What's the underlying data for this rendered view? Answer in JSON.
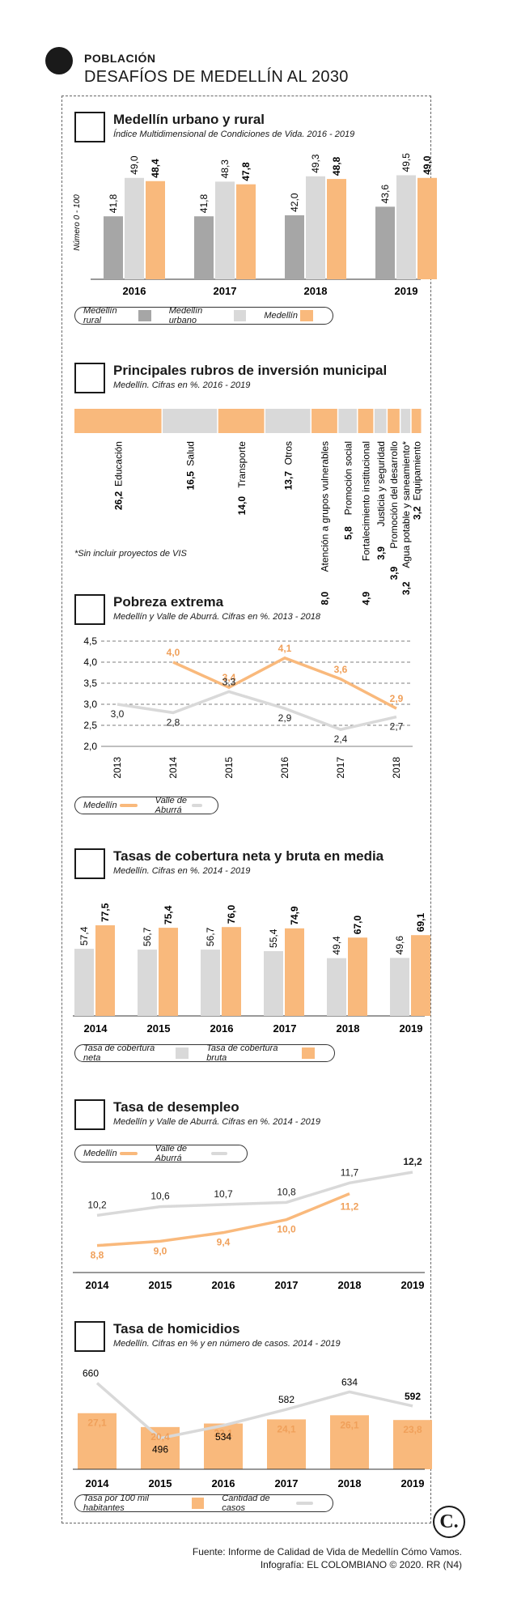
{
  "header": {
    "section": "POBLACIÓN",
    "title": "DESAFÍOS DE MEDELLÍN AL 2030"
  },
  "colors": {
    "orange": "#f9b97c",
    "gray_light": "#d9d9d9",
    "gray_dark": "#a6a6a6"
  },
  "sections": {
    "urbano_rural": {
      "title": "Medellín urbano y rural",
      "subtitle": "Índice Multidimensional de Condiciones de Vida. 2016 - 2019",
      "ylabel": "Número 0 - 100",
      "legend": [
        "Medellín rural",
        "Medellín urbano",
        "Medellín"
      ]
    },
    "inversion": {
      "title": "Principales rubros de inversión municipal",
      "subtitle": "Medellín. Cifras en %. 2016 - 2019",
      "note": "*Sin incluir proyectos de VIS"
    },
    "pobreza": {
      "title": "Pobreza extrema",
      "subtitle": "Medellín y Valle de Aburrá. Cifras en %. 2013 - 2018",
      "legend": [
        "Medellín",
        "Valle de Aburrá"
      ]
    },
    "cobertura": {
      "title": "Tasas de cobertura neta y bruta en media",
      "subtitle": "Medellín. Cifras en %. 2014 - 2019",
      "legend": [
        "Tasa de cobertura neta",
        "Tasa de cobertura bruta"
      ]
    },
    "desempleo": {
      "title": "Tasa de desempleo",
      "subtitle": "Medellín y Valle de Aburrá. Cifras en %. 2014 - 2019",
      "legend": [
        "Medellín",
        "Valle de Aburrá"
      ]
    },
    "homicidios": {
      "title": "Tasa de homicidios",
      "subtitle": "Medellín. Cifras en % y en número de casos. 2014 - 2019",
      "legend": [
        "Tasa por 100 mil habitantes",
        "Cantidad de casos"
      ]
    }
  },
  "footer": {
    "source": "Fuente: Informe de Calidad de Vida de Medellín Cómo Vamos.",
    "credit": "Infografía: EL COLOMBIANO © 2020. RR (N4)",
    "logo": "C."
  },
  "chart_data": [
    {
      "type": "bar",
      "categories": [
        "2016",
        "2017",
        "2018",
        "2019"
      ],
      "series": [
        {
          "name": "Medellín rural",
          "values": [
            41.8,
            41.8,
            42.0,
            43.6
          ],
          "labels": [
            "41,8",
            "41,8",
            "42,0",
            "43,6"
          ]
        },
        {
          "name": "Medellín urbano",
          "values": [
            49.0,
            48.3,
            49.3,
            49.5
          ],
          "labels": [
            "49,0",
            "48,3",
            "49,3",
            "49,5"
          ]
        },
        {
          "name": "Medellín",
          "values": [
            48.4,
            47.8,
            48.8,
            49.0
          ],
          "labels": [
            "48,4",
            "47,8",
            "48,8",
            "49,0"
          ]
        }
      ],
      "ylim": [
        30,
        52
      ]
    },
    {
      "type": "bar",
      "stacked": true,
      "categories": [
        "Educación",
        "Salud",
        "Transporte",
        "Otros",
        "Atención a grupos vulnerables",
        "Promoción social",
        "Fortalecimiento institucional",
        "Justicia y seguridad",
        "Promoción del desarrollo",
        "Agua potable y saneamiento*",
        "Equipamiento"
      ],
      "values": [
        26.2,
        16.5,
        14.0,
        13.7,
        8.0,
        5.8,
        4.9,
        3.9,
        3.9,
        3.2,
        3.2
      ],
      "labels": [
        "26,2",
        "16,5",
        "14,0",
        "13,7",
        "8,0",
        "5,8",
        "4,9",
        "3,9",
        "3,9",
        "3,2",
        "3,2"
      ],
      "value_label_suffix_order": "name value"
    },
    {
      "type": "line",
      "x": [
        "2013",
        "2014",
        "2015",
        "2016",
        "2017",
        "2018"
      ],
      "series": [
        {
          "name": "Medellín",
          "values": [
            null,
            4.0,
            3.4,
            4.1,
            3.6,
            2.9
          ],
          "labels": [
            "",
            "4,0",
            "3,4",
            "4,1",
            "3,6",
            "2,9"
          ]
        },
        {
          "name": "Valle de Aburrá",
          "values": [
            3.0,
            2.8,
            3.3,
            2.9,
            2.4,
            2.7
          ],
          "labels": [
            "3,0",
            "2,8",
            "3,3",
            "2,9",
            "2,4",
            "2,7"
          ]
        }
      ],
      "yticks": [
        "4,5",
        "4,0",
        "3,5",
        "3,0",
        "2,5",
        "2,0"
      ],
      "ylim": [
        2.0,
        4.5
      ],
      "grid": true
    },
    {
      "type": "bar",
      "categories": [
        "2014",
        "2015",
        "2016",
        "2017",
        "2018",
        "2019"
      ],
      "series": [
        {
          "name": "Tasa de cobertura neta",
          "values": [
            57.4,
            56.7,
            56.7,
            55.4,
            49.4,
            49.6
          ],
          "labels": [
            "57,4",
            "56,7",
            "56,7",
            "55,4",
            "49,4",
            "49,6"
          ]
        },
        {
          "name": "Tasa de cobertura bruta",
          "values": [
            77.5,
            75.4,
            76.0,
            74.9,
            67.0,
            69.1
          ],
          "labels": [
            "77,5",
            "75,4",
            "76,0",
            "74,9",
            "67,0",
            "69,1"
          ]
        }
      ],
      "ylim": [
        0,
        90
      ]
    },
    {
      "type": "line",
      "x": [
        "2014",
        "2015",
        "2016",
        "2017",
        "2018",
        "2019"
      ],
      "series": [
        {
          "name": "Medellín",
          "values": [
            8.8,
            9.0,
            9.4,
            10.0,
            11.2,
            null
          ],
          "labels": [
            "8,8",
            "9,0",
            "9,4",
            "10,0",
            "11,2",
            ""
          ]
        },
        {
          "name": "Valle de Aburrá",
          "values": [
            10.2,
            10.6,
            10.7,
            10.8,
            11.7,
            12.2
          ],
          "labels": [
            "10,2",
            "10,6",
            "10,7",
            "10,8",
            "11,7",
            "12,2"
          ]
        }
      ],
      "ylim": [
        8.0,
        12.5
      ]
    },
    {
      "type": "bar",
      "categories": [
        "2014",
        "2015",
        "2016",
        "2017",
        "2018",
        "2019"
      ],
      "series": [
        {
          "name": "Tasa por 100 mil habitantes",
          "values": [
            27.1,
            20.4,
            22.1,
            24.1,
            26.1,
            23.8
          ],
          "labels": [
            "27,1",
            "20,4",
            "22,1",
            "24,1",
            "26,1",
            "23,8"
          ]
        },
        {
          "name": "Cantidad de casos",
          "type": "line",
          "values": [
            660,
            496,
            534,
            582,
            634,
            592
          ],
          "labels": [
            "660",
            "496",
            "534",
            "582",
            "634",
            "592"
          ]
        }
      ],
      "ylim": [
        0,
        45
      ],
      "y2lim": [
        440,
        700
      ]
    }
  ]
}
